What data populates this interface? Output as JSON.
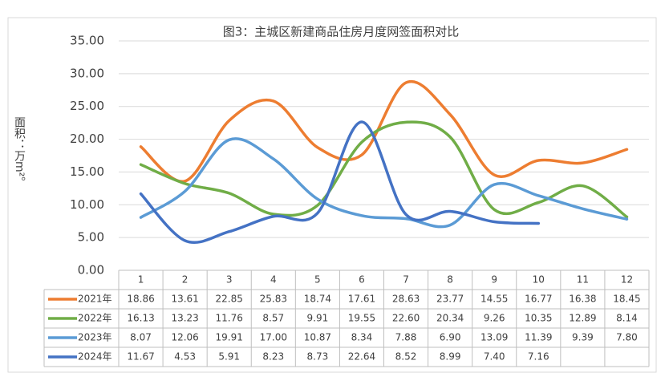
{
  "chart_data": {
    "type": "line",
    "title": "图3：主城区新建商品住房月度网签面积对比",
    "y_label": "面积：万m²。",
    "categories": [
      "1",
      "2",
      "3",
      "4",
      "5",
      "6",
      "7",
      "8",
      "9",
      "10",
      "11",
      "12"
    ],
    "series": [
      {
        "name": "2021年",
        "color": "#ed7d31",
        "values": [
          18.86,
          13.61,
          22.85,
          25.83,
          18.74,
          17.61,
          28.63,
          23.77,
          14.55,
          16.77,
          16.38,
          18.45
        ],
        "value_labels": [
          "18.86",
          "13.61",
          "22.85",
          "25.83",
          "18.74",
          "17.61",
          "28.63",
          "23.77",
          "14.55",
          "16.77",
          "16.38",
          "18.45"
        ]
      },
      {
        "name": "2022年",
        "color": "#70ad47",
        "values": [
          16.13,
          13.23,
          11.76,
          8.57,
          9.91,
          19.55,
          22.6,
          20.34,
          9.26,
          10.35,
          12.89,
          8.14
        ],
        "value_labels": [
          "16.13",
          "13.23",
          "11.76",
          "8.57",
          "9.91",
          "19.55",
          "22.60",
          "20.34",
          "9.26",
          "10.35",
          "12.89",
          "8.14"
        ]
      },
      {
        "name": "2023年",
        "color": "#5b9bd5",
        "values": [
          8.07,
          12.06,
          19.91,
          17,
          10.87,
          8.34,
          7.88,
          6.9,
          13.09,
          11.39,
          9.39,
          7.8
        ],
        "value_labels": [
          "8.07",
          "12.06",
          "19.91",
          "17.00",
          "10.87",
          "8.34",
          "7.88",
          "6.90",
          "13.09",
          "11.39",
          "9.39",
          "7.80"
        ]
      },
      {
        "name": "2024年",
        "color": "#4472c4",
        "values": [
          11.67,
          4.53,
          5.91,
          8.23,
          8.73,
          22.64,
          8.52,
          8.99,
          7.4,
          7.16,
          null,
          null
        ],
        "value_labels": [
          "11.67",
          "4.53",
          "5.91",
          "8.23",
          "8.73",
          "22.64",
          "8.52",
          "8.99",
          "7.40",
          "7.16",
          null,
          null
        ]
      }
    ],
    "ylim": [
      0,
      35
    ],
    "yticks": [
      {
        "value": 0,
        "label": "0.00"
      },
      {
        "value": 5,
        "label": "5.00"
      },
      {
        "value": 10,
        "label": "10.00"
      },
      {
        "value": 15,
        "label": "15.00"
      },
      {
        "value": 20,
        "label": "20.00"
      },
      {
        "value": 25,
        "label": "25.00"
      },
      {
        "value": 30,
        "label": "30.00"
      },
      {
        "value": 35,
        "label": "35.00"
      }
    ],
    "grid": true
  }
}
